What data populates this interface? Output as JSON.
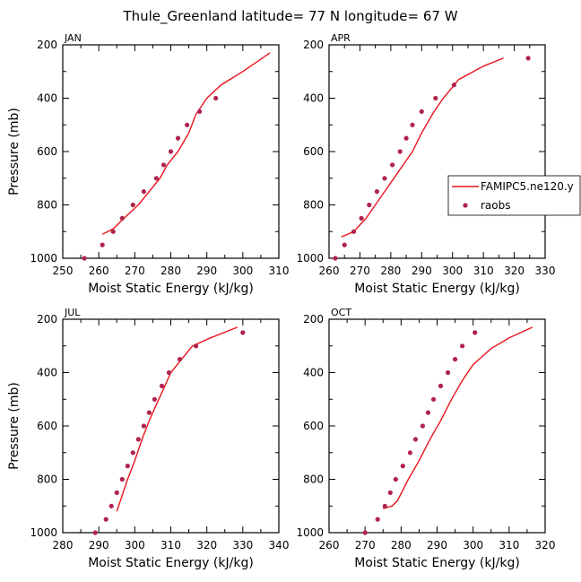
{
  "figure_title": "Thule_Greenland   latitude= 77 N longitude= 67 W",
  "colors": {
    "model_line": "#e8141c",
    "obs_marker": "#b0234f",
    "axis": "#000000"
  },
  "chart_data": [
    {
      "type": "line",
      "panel": "JAN",
      "xlabel": "Moist Static Energy (kJ/kg)",
      "ylabel": "Pressure (mb)",
      "xlim": [
        250,
        310
      ],
      "ylim": [
        1000,
        200
      ],
      "xticks": [
        250,
        260,
        270,
        280,
        290,
        300,
        310
      ],
      "yticks": [
        200,
        400,
        600,
        800,
        1000
      ],
      "series": [
        {
          "name": "FAMIPC5.ne120.y",
          "style": "line",
          "x": [
            261,
            264,
            267,
            271,
            274,
            277,
            279,
            282,
            285,
            287,
            290,
            294,
            300,
            307.5
          ],
          "y": [
            910,
            890,
            850,
            800,
            750,
            700,
            650,
            600,
            530,
            460,
            400,
            350,
            300,
            230
          ]
        },
        {
          "name": "raobs",
          "style": "markers",
          "x": [
            256,
            261,
            264,
            266.5,
            269.5,
            272.5,
            276,
            278,
            280,
            282,
            284.5,
            288,
            292.5
          ],
          "y": [
            1000,
            950,
            900,
            850,
            800,
            750,
            700,
            650,
            600,
            550,
            500,
            450,
            400
          ]
        }
      ]
    },
    {
      "type": "line",
      "panel": "APR",
      "xlabel": "Moist Static Energy (kJ/kg)",
      "ylabel": "",
      "xlim": [
        260,
        330
      ],
      "ylim": [
        1000,
        200
      ],
      "xticks": [
        260,
        270,
        280,
        290,
        300,
        310,
        320,
        330
      ],
      "yticks": [
        200,
        400,
        600,
        800,
        1000
      ],
      "legend": {
        "placement": "right",
        "entries": [
          "FAMIPC5.ne120.y",
          "raobs"
        ]
      },
      "series": [
        {
          "name": "FAMIPC5.ne120.y",
          "style": "line",
          "x": [
            264,
            268,
            272,
            275,
            278,
            281,
            284,
            287,
            290,
            294,
            297,
            302,
            310,
            316.5
          ],
          "y": [
            920,
            900,
            850,
            800,
            750,
            700,
            650,
            600,
            530,
            450,
            400,
            330,
            280,
            250
          ]
        },
        {
          "name": "raobs",
          "style": "markers",
          "x": [
            262,
            265,
            268,
            270.5,
            273,
            275.5,
            278,
            280.5,
            283,
            285,
            287,
            290,
            294.5,
            300.5,
            324.5
          ],
          "y": [
            1000,
            950,
            900,
            850,
            800,
            750,
            700,
            650,
            600,
            550,
            500,
            450,
            400,
            350,
            250
          ]
        }
      ]
    },
    {
      "type": "line",
      "panel": "JUL",
      "xlabel": "Moist Static Energy (kJ/kg)",
      "ylabel": "Pressure (mb)",
      "xlim": [
        280,
        340
      ],
      "ylim": [
        1000,
        200
      ],
      "xticks": [
        280,
        290,
        300,
        310,
        320,
        330,
        340
      ],
      "yticks": [
        200,
        400,
        600,
        800,
        1000
      ],
      "series": [
        {
          "name": "FAMIPC5.ne120.y",
          "style": "line",
          "x": [
            295,
            296,
            298,
            300,
            302,
            304,
            306,
            308,
            310,
            313,
            316,
            321,
            328.5
          ],
          "y": [
            920,
            880,
            800,
            730,
            650,
            580,
            520,
            460,
            400,
            350,
            300,
            270,
            230
          ]
        },
        {
          "name": "raobs",
          "style": "markers",
          "x": [
            289,
            292,
            293.5,
            295,
            296.5,
            298,
            299.5,
            301,
            302.5,
            304,
            305.5,
            307.5,
            309.5,
            312.5,
            317,
            330
          ],
          "y": [
            1000,
            950,
            900,
            850,
            800,
            750,
            700,
            650,
            600,
            550,
            500,
            450,
            400,
            350,
            300,
            250
          ]
        }
      ]
    },
    {
      "type": "line",
      "panel": "OCT",
      "xlabel": "Moist Static Energy (kJ/kg)",
      "ylabel": "",
      "xlim": [
        260,
        320
      ],
      "ylim": [
        1000,
        200
      ],
      "xticks": [
        260,
        270,
        280,
        290,
        300,
        310,
        320
      ],
      "yticks": [
        200,
        400,
        600,
        800,
        1000
      ],
      "series": [
        {
          "name": "FAMIPC5.ne120.y",
          "style": "line",
          "x": [
            275,
            277.5,
            279,
            282,
            285,
            288,
            291,
            294,
            297,
            300,
            302.5,
            305,
            310,
            316.5
          ],
          "y": [
            910,
            900,
            880,
            800,
            730,
            650,
            580,
            500,
            430,
            370,
            340,
            310,
            270,
            230
          ]
        },
        {
          "name": "raobs",
          "style": "markers",
          "x": [
            270,
            273.5,
            275.5,
            277,
            278.5,
            280.5,
            282.5,
            284,
            286,
            287.5,
            289,
            291,
            293,
            295,
            297,
            300.5
          ],
          "y": [
            1000,
            950,
            900,
            850,
            800,
            750,
            700,
            650,
            600,
            550,
            500,
            450,
            400,
            350,
            300,
            250
          ]
        }
      ]
    }
  ]
}
